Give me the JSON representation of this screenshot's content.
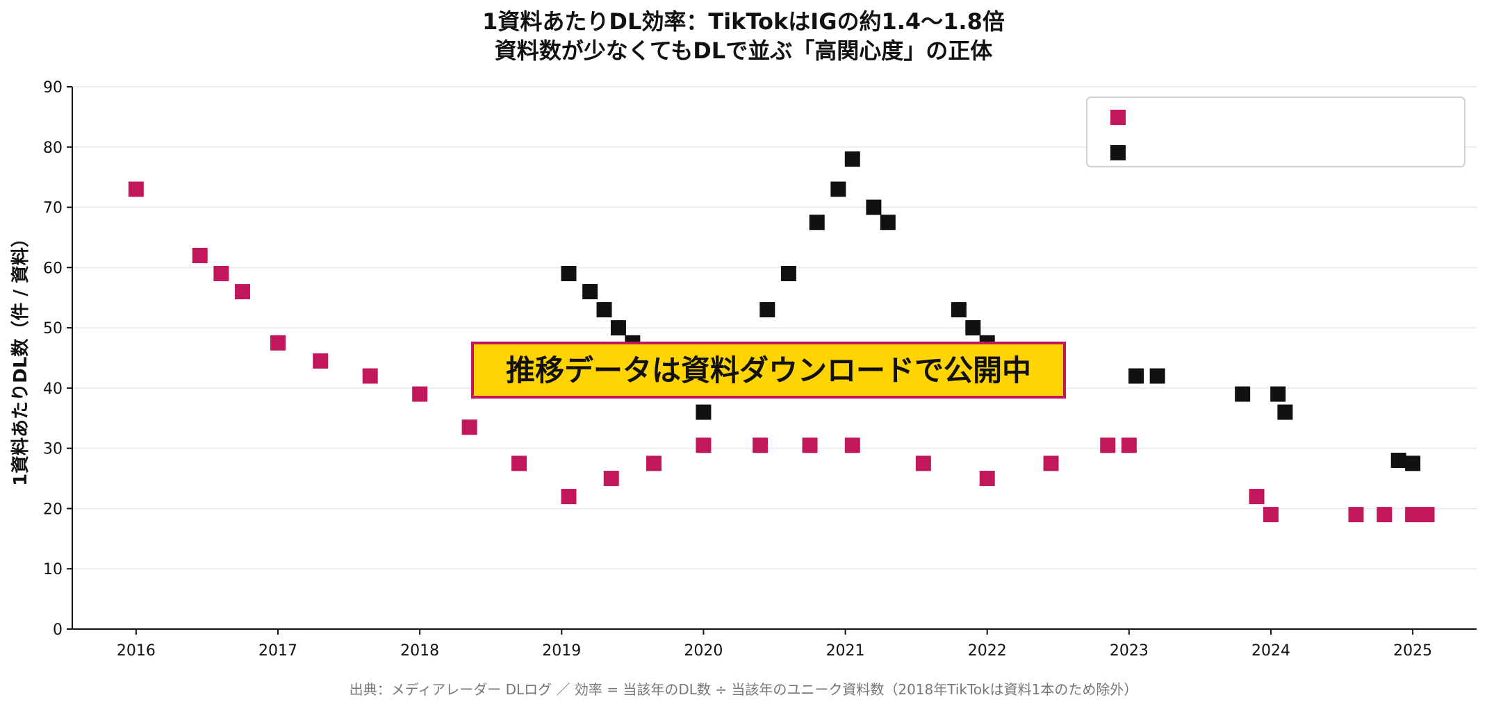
{
  "chart_data": {
    "type": "line",
    "title": "1資料あたりDL効率：TikTokはIGの約1.4〜1.8倍",
    "subtitle": "資料数が少なくてもDLで並ぶ「高関心度」の正体",
    "xlabel": "",
    "ylabel": "1資料あたりDL数（件 / 資料）",
    "ylim": [
      0,
      90
    ],
    "yticks": [
      0,
      10,
      20,
      30,
      40,
      50,
      60,
      70,
      80,
      90
    ],
    "xlim": [
      2015.55,
      2025.45
    ],
    "xticks": [
      2016,
      2017,
      2018,
      2019,
      2020,
      2021,
      2022,
      2023,
      2024,
      2025
    ],
    "grid": "horizontal",
    "legend_position": "top-right",
    "series": [
      {
        "name": "",
        "color": "#c2185b",
        "marker": "square",
        "x": [
          2016.0,
          2016.45,
          2016.6,
          2016.75,
          2017.0,
          2017.3,
          2017.65,
          2018.0,
          2018.35,
          2018.7,
          2019.05,
          2019.35,
          2019.65,
          2020.0,
          2020.4,
          2020.75,
          2021.05,
          2021.55,
          2022.0,
          2022.45,
          2022.85,
          2023.0,
          2023.9,
          2024.0,
          2024.6,
          2024.8,
          2025.0,
          2025.1
        ],
        "y": [
          73,
          62,
          59,
          56,
          47.5,
          44.5,
          42,
          39,
          33.5,
          27.5,
          22,
          25,
          27.5,
          30.5,
          30.5,
          30.5,
          30.5,
          27.5,
          25,
          27.5,
          30.5,
          30.5,
          22,
          19,
          19,
          19,
          19,
          19
        ]
      },
      {
        "name": "",
        "color": "#111111",
        "marker": "square",
        "x": [
          2019.05,
          2019.2,
          2019.3,
          2019.4,
          2019.5,
          2020.0,
          2020.45,
          2020.6,
          2020.8,
          2020.95,
          2021.05,
          2021.2,
          2021.3,
          2021.8,
          2021.9,
          2022.0,
          2023.05,
          2023.2,
          2023.8,
          2024.05,
          2024.1,
          2024.9,
          2025.0
        ],
        "y": [
          59,
          56,
          53,
          50,
          47.5,
          36,
          53,
          59,
          67.5,
          73,
          78,
          70,
          67.5,
          53,
          50,
          47.5,
          42,
          42,
          39,
          39,
          36,
          28,
          27.5
        ]
      }
    ],
    "legend": {
      "entries": [
        "",
        ""
      ]
    },
    "source": "出典：メディアレーダー DLログ ／ 効率 = 当該年のDL数 ÷ 当該年のユニーク資料数（2018年TikTokは資料1本のため除外）"
  },
  "banner": {
    "text": "推移データは資料ダウンロードで公開中",
    "background": "#ffd400",
    "border": "#c2185b"
  }
}
